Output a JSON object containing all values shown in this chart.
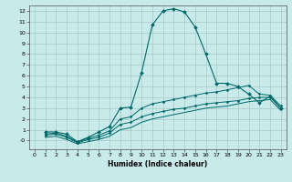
{
  "xlabel": "Humidex (Indice chaleur)",
  "ylabel": "",
  "bg_color": "#c8eaea",
  "grid_color": "#a8c8c8",
  "line_color": "#006868",
  "xlim": [
    -0.5,
    23.5
  ],
  "ylim": [
    -0.8,
    12.5
  ],
  "xticks": [
    0,
    1,
    2,
    3,
    4,
    5,
    6,
    7,
    8,
    9,
    10,
    11,
    12,
    13,
    14,
    15,
    16,
    17,
    18,
    19,
    20,
    21,
    22,
    23
  ],
  "yticks": [
    0,
    1,
    2,
    3,
    4,
    5,
    6,
    7,
    8,
    9,
    10,
    11,
    12
  ],
  "series": [
    {
      "x": [
        1,
        2,
        3,
        4,
        5,
        6,
        7,
        8,
        9,
        10,
        11,
        12,
        13,
        14,
        15,
        16,
        17,
        18,
        19,
        20,
        21,
        22,
        23
      ],
      "y": [
        0.8,
        0.8,
        0.6,
        -0.1,
        0.3,
        0.8,
        1.3,
        3.0,
        3.1,
        6.3,
        10.7,
        12.0,
        12.2,
        11.9,
        10.5,
        8.0,
        5.3,
        5.3,
        5.0,
        4.3,
        3.5,
        4.1,
        3.0
      ],
      "marker": "D",
      "markersize": 2.0,
      "linewidth": 0.8
    },
    {
      "x": [
        1,
        2,
        3,
        4,
        5,
        6,
        7,
        8,
        9,
        10,
        11,
        12,
        13,
        14,
        15,
        16,
        17,
        18,
        19,
        20,
        21,
        22,
        23
      ],
      "y": [
        0.5,
        0.6,
        0.3,
        -0.2,
        0.1,
        0.3,
        0.7,
        1.5,
        1.7,
        2.2,
        2.5,
        2.7,
        2.9,
        3.0,
        3.2,
        3.4,
        3.5,
        3.6,
        3.7,
        3.9,
        4.0,
        4.0,
        3.0
      ],
      "marker": "D",
      "markersize": 1.5,
      "linewidth": 0.7
    },
    {
      "x": [
        1,
        2,
        3,
        4,
        5,
        6,
        7,
        8,
        9,
        10,
        11,
        12,
        13,
        14,
        15,
        16,
        17,
        18,
        19,
        20,
        21,
        22,
        23
      ],
      "y": [
        0.3,
        0.4,
        0.1,
        -0.3,
        -0.1,
        0.1,
        0.4,
        1.0,
        1.2,
        1.7,
        2.0,
        2.2,
        2.4,
        2.6,
        2.8,
        3.0,
        3.1,
        3.2,
        3.4,
        3.6,
        3.7,
        3.8,
        2.8
      ],
      "marker": null,
      "markersize": 0,
      "linewidth": 0.7
    },
    {
      "x": [
        1,
        2,
        3,
        4,
        5,
        6,
        7,
        8,
        9,
        10,
        11,
        12,
        13,
        14,
        15,
        16,
        17,
        18,
        19,
        20,
        21,
        22,
        23
      ],
      "y": [
        0.6,
        0.7,
        0.4,
        -0.15,
        0.2,
        0.5,
        0.9,
        2.0,
        2.2,
        3.0,
        3.4,
        3.6,
        3.8,
        4.0,
        4.2,
        4.4,
        4.5,
        4.7,
        4.9,
        5.1,
        4.3,
        4.2,
        3.2
      ],
      "marker": "D",
      "markersize": 1.5,
      "linewidth": 0.7
    }
  ]
}
